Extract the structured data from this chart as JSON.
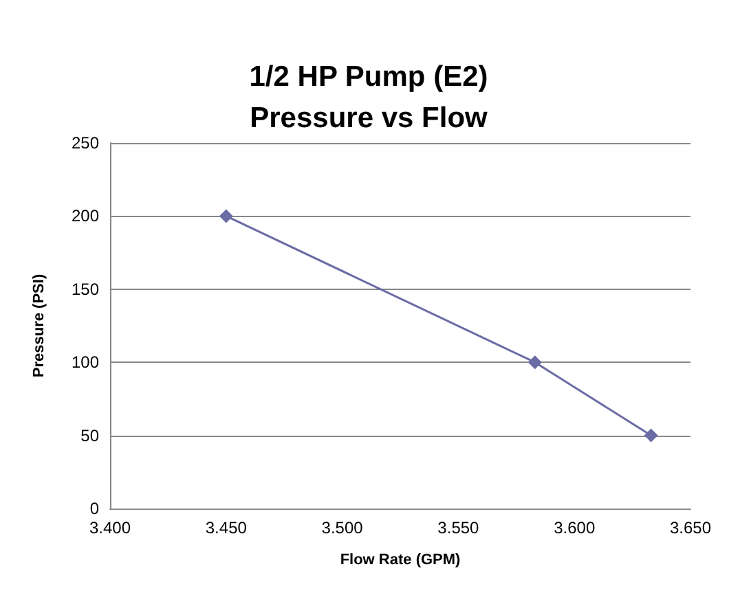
{
  "chart_data": {
    "type": "line",
    "title": "1/2 HP Pump (E2)\nPressure vs Flow",
    "xlabel": "Flow Rate (GPM)",
    "ylabel": "Pressure (PSI)",
    "x": [
      3.45,
      3.583,
      3.633
    ],
    "series": [
      {
        "color": "#6b6ba6",
        "values": [
          200,
          100,
          50
        ]
      }
    ],
    "xlim": [
      3.4,
      3.65
    ],
    "xticks": [
      {
        "value": 3.4,
        "label": "3.400"
      },
      {
        "value": 3.45,
        "label": "3.450"
      },
      {
        "value": 3.5,
        "label": "3.500"
      },
      {
        "value": 3.55,
        "label": "3.550"
      },
      {
        "value": 3.6,
        "label": "3.600"
      },
      {
        "value": 3.65,
        "label": "3.650"
      }
    ],
    "ylim": [
      0,
      250
    ],
    "yticks": [
      0,
      50,
      100,
      150,
      200,
      250
    ],
    "grid": "y",
    "marker": "diamond",
    "line_style": "solid"
  }
}
